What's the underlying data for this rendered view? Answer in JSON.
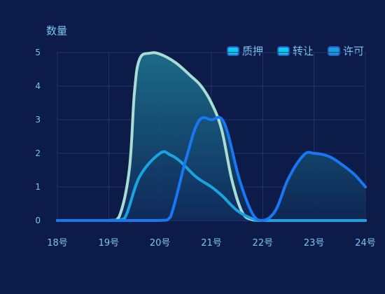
{
  "chart_data": {
    "type": "area",
    "title": "",
    "ylabel": "数量",
    "xlabel": "",
    "categories": [
      "18号",
      "19号",
      "20号",
      "21号",
      "22号",
      "23号",
      "24号"
    ],
    "ylim": [
      0,
      5
    ],
    "yticks": [
      0,
      1,
      2,
      3,
      4,
      5
    ],
    "grid": true,
    "legend_position": "top-right",
    "series": [
      {
        "name": "质押",
        "color": "#a8dcd4",
        "points": [
          [
            0,
            0
          ],
          [
            1,
            0
          ],
          [
            1.2,
            0.1
          ],
          [
            1.4,
            1.5
          ],
          [
            1.5,
            3.8
          ],
          [
            1.6,
            4.8
          ],
          [
            1.8,
            4.98
          ],
          [
            2,
            4.95
          ],
          [
            2.3,
            4.7
          ],
          [
            2.6,
            4.3
          ],
          [
            2.8,
            4.0
          ],
          [
            3,
            3.5
          ],
          [
            3.2,
            2.7
          ],
          [
            3.4,
            1.2
          ],
          [
            3.6,
            0.25
          ],
          [
            3.8,
            0.02
          ],
          [
            4,
            0
          ],
          [
            5,
            0
          ],
          [
            6,
            0
          ]
        ]
      },
      {
        "name": "转让",
        "color": "#1aa3e0",
        "points": [
          [
            0,
            0
          ],
          [
            1,
            0
          ],
          [
            1.3,
            0.05
          ],
          [
            1.6,
            1.3
          ],
          [
            2,
            2.0
          ],
          [
            2.2,
            1.95
          ],
          [
            2.4,
            1.75
          ],
          [
            2.7,
            1.3
          ],
          [
            3,
            1.0
          ],
          [
            3.2,
            0.75
          ],
          [
            3.5,
            0.3
          ],
          [
            3.8,
            0.05
          ],
          [
            4,
            0
          ],
          [
            5,
            0
          ],
          [
            6,
            0
          ]
        ]
      },
      {
        "name": "许可",
        "color": "#1877f2",
        "points": [
          [
            0,
            0
          ],
          [
            1,
            0
          ],
          [
            2,
            0
          ],
          [
            2.2,
            0.1
          ],
          [
            2.5,
            1.8
          ],
          [
            2.75,
            2.95
          ],
          [
            3,
            3.0
          ],
          [
            3.25,
            2.9
          ],
          [
            3.55,
            1.2
          ],
          [
            3.8,
            0.2
          ],
          [
            4,
            0
          ],
          [
            4.25,
            0.3
          ],
          [
            4.5,
            1.25
          ],
          [
            4.8,
            1.95
          ],
          [
            5,
            2.0
          ],
          [
            5.3,
            1.9
          ],
          [
            5.6,
            1.6
          ],
          [
            5.8,
            1.35
          ],
          [
            6,
            1.0
          ]
        ]
      }
    ]
  }
}
